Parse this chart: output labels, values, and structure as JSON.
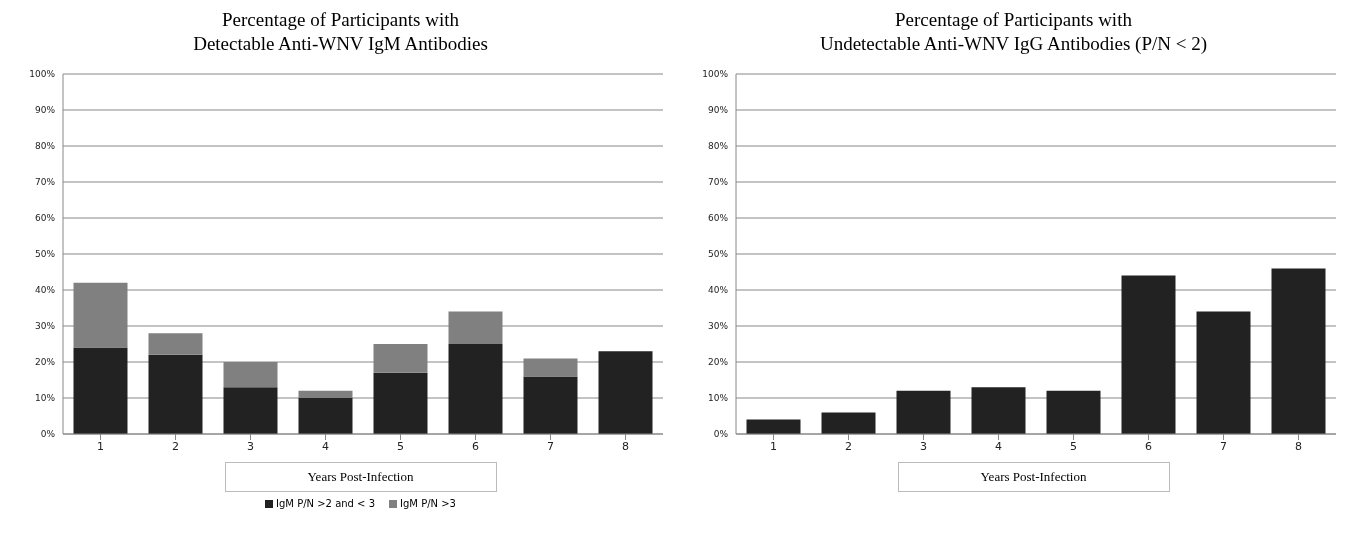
{
  "chart_data": [
    {
      "type": "bar",
      "title": "Percentage of Participants with\nDetectable Anti-WNV IgM Antibodies",
      "xlabel": "Years Post-Infection",
      "categories": [
        "1",
        "2",
        "3",
        "4",
        "5",
        "6",
        "7",
        "8"
      ],
      "stacked": true,
      "series": [
        {
          "name": "IgM P/N >2 and < 3",
          "color": "#222222",
          "values": [
            24,
            22,
            13,
            10,
            17,
            25,
            16,
            23
          ]
        },
        {
          "name": "IgM P/N >3",
          "color": "#808080",
          "values": [
            18,
            6,
            7,
            2,
            8,
            9,
            5,
            null
          ]
        }
      ],
      "ylim": [
        0,
        100
      ],
      "yticks": [
        {
          "value": 0,
          "label": "0%"
        },
        {
          "value": 10,
          "label": "10%"
        },
        {
          "value": 20,
          "label": "20%"
        },
        {
          "value": 30,
          "label": "30%"
        },
        {
          "value": 40,
          "label": "40%"
        },
        {
          "value": 50,
          "label": "50%"
        },
        {
          "value": 60,
          "label": "60%"
        },
        {
          "value": 70,
          "label": "70%"
        },
        {
          "value": 80,
          "label": "80%"
        },
        {
          "value": 90,
          "label": "90%"
        },
        {
          "value": 100,
          "label": "100%"
        }
      ],
      "grid": "y",
      "legend": "bottom"
    },
    {
      "type": "bar",
      "title": "Percentage of Participants with\nUndetectable Anti-WNV IgG Antibodies  (P/N < 2)",
      "xlabel": "Years Post-Infection",
      "categories": [
        "1",
        "2",
        "3",
        "4",
        "5",
        "6",
        "7",
        "8"
      ],
      "series": [
        {
          "color": "#222222",
          "values": [
            4,
            6,
            12,
            13,
            12,
            44,
            34,
            46
          ]
        }
      ],
      "ylim": [
        0,
        100
      ],
      "yticks": [
        {
          "value": 0,
          "label": "0%"
        },
        {
          "value": 10,
          "label": "10%"
        },
        {
          "value": 20,
          "label": "20%"
        },
        {
          "value": 30,
          "label": "30%"
        },
        {
          "value": 40,
          "label": "40%"
        },
        {
          "value": 50,
          "label": "50%"
        },
        {
          "value": 60,
          "label": "60%"
        },
        {
          "value": 70,
          "label": "70%"
        },
        {
          "value": 80,
          "label": "80%"
        },
        {
          "value": 90,
          "label": "90%"
        },
        {
          "value": 100,
          "label": "100%"
        }
      ],
      "grid": "y"
    }
  ]
}
